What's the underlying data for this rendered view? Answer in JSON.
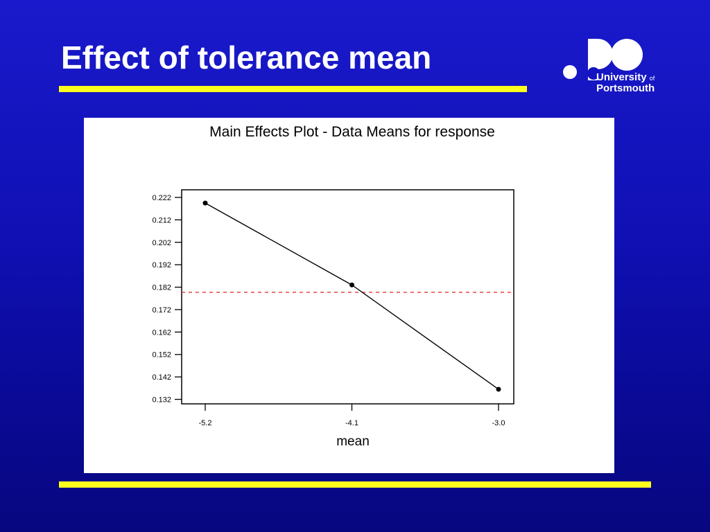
{
  "slide": {
    "title": "Effect of tolerance mean"
  },
  "logo": {
    "line1": "University",
    "line1_of": "of",
    "line2": "Portsmouth"
  },
  "colors": {
    "background": "#1414c0",
    "accent_bar": "#ffff1e",
    "reference_line": "#e02020"
  },
  "chart_data": {
    "type": "line",
    "title": "Main Effects Plot - Data Means for response",
    "xlabel": "mean",
    "ylabel": "",
    "categories": [
      "-5.2",
      "-4.1",
      "-3.0"
    ],
    "values": [
      0.2195,
      0.183,
      0.1365
    ],
    "reference_line": 0.1797,
    "ylim": [
      0.13,
      0.2254
    ],
    "yticks": [
      "0.132",
      "0.142",
      "0.152",
      "0.162",
      "0.172",
      "0.182",
      "0.192",
      "0.202",
      "0.212",
      "0.222"
    ],
    "grid": false,
    "legend": "none"
  }
}
